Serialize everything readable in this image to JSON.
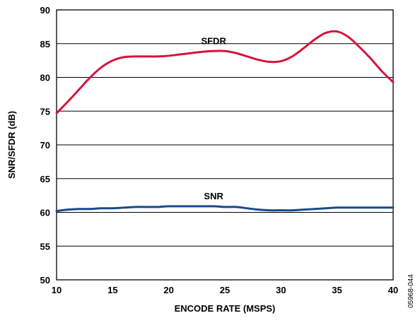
{
  "chart_data": {
    "type": "line",
    "title": "",
    "xlabel": "ENCODE RATE (MSPS)",
    "ylabel": "SNR/SFDR (dB)",
    "xlim": [
      10,
      40
    ],
    "ylim": [
      50,
      90
    ],
    "xticks": [
      10,
      15,
      20,
      25,
      30,
      35,
      40
    ],
    "yticks": [
      50,
      55,
      60,
      65,
      70,
      75,
      80,
      85,
      90
    ],
    "grid": "horizontal",
    "series": [
      {
        "name": "SFDR",
        "color": "#d4143c",
        "x": [
          10,
          11,
          12,
          13,
          14,
          15,
          16,
          17,
          18,
          19,
          20,
          21,
          22,
          23,
          24,
          25,
          26,
          27,
          28,
          29,
          30,
          31,
          32,
          33,
          34,
          35,
          36,
          37,
          38,
          39,
          40
        ],
        "y": [
          74.7,
          76.4,
          78.2,
          80.0,
          81.5,
          82.5,
          83.0,
          83.1,
          83.1,
          83.1,
          83.2,
          83.4,
          83.6,
          83.8,
          83.9,
          83.9,
          83.6,
          83.1,
          82.6,
          82.3,
          82.4,
          83.1,
          84.3,
          85.6,
          86.6,
          86.8,
          86.0,
          84.5,
          82.8,
          80.9,
          79.3
        ]
      },
      {
        "name": "SNR",
        "color": "#1a4a8c",
        "x": [
          10,
          11,
          12,
          13,
          14,
          15,
          16,
          17,
          18,
          19,
          20,
          21,
          22,
          23,
          24,
          25,
          26,
          27,
          28,
          29,
          30,
          31,
          32,
          33,
          34,
          35,
          36,
          37,
          38,
          39,
          40
        ],
        "y": [
          60.2,
          60.4,
          60.5,
          60.5,
          60.6,
          60.6,
          60.7,
          60.8,
          60.8,
          60.8,
          60.9,
          60.9,
          60.9,
          60.9,
          60.9,
          60.8,
          60.8,
          60.6,
          60.4,
          60.3,
          60.3,
          60.3,
          60.4,
          60.5,
          60.6,
          60.7,
          60.7,
          60.7,
          60.7,
          60.7,
          60.7
        ]
      }
    ]
  },
  "figure_id": "05968-044"
}
